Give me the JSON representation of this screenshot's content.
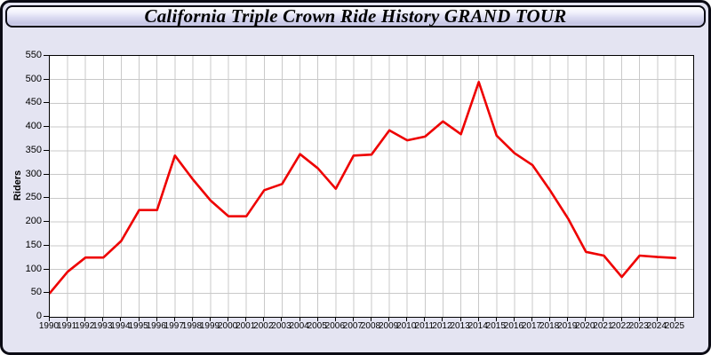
{
  "window": {
    "title": "California Triple Crown Ride History GRAND TOUR"
  },
  "chart_data": {
    "type": "line",
    "title": "California Triple Crown Ride History GRAND TOUR",
    "xlabel": "",
    "ylabel": "Riders",
    "x": [
      "1990",
      "1991",
      "1992",
      "1993",
      "1994",
      "1995",
      "1996",
      "1997",
      "1998",
      "1999",
      "2000",
      "2001",
      "2002",
      "2003",
      "2004",
      "2005",
      "2006",
      "2007",
      "2008",
      "2009",
      "2010",
      "2011",
      "2012",
      "2013",
      "2014",
      "2015",
      "2016",
      "2017",
      "2018",
      "2019",
      "2020",
      "2021",
      "2022",
      "2023",
      "2024",
      "2025"
    ],
    "series": [
      {
        "name": "Riders",
        "color": "#ee0000",
        "values": [
          50,
          95,
          125,
          125,
          160,
          225,
          225,
          340,
          290,
          245,
          212,
          212,
          267,
          280,
          343,
          313,
          270,
          340,
          342,
          393,
          372,
          380,
          412,
          385,
          495,
          382,
          345,
          320,
          266,
          207,
          137,
          129,
          84,
          129,
          126,
          124
        ]
      }
    ],
    "ylim": [
      0,
      550
    ],
    "ytick_step": 50,
    "grid": true,
    "legend_position": "none",
    "colors": {
      "page_background": "#e4e4f2",
      "plot_background": "#ffffff",
      "grid_color": "#c9c9c9",
      "axis_color": "#000000",
      "line_color": "#ee0000"
    }
  }
}
